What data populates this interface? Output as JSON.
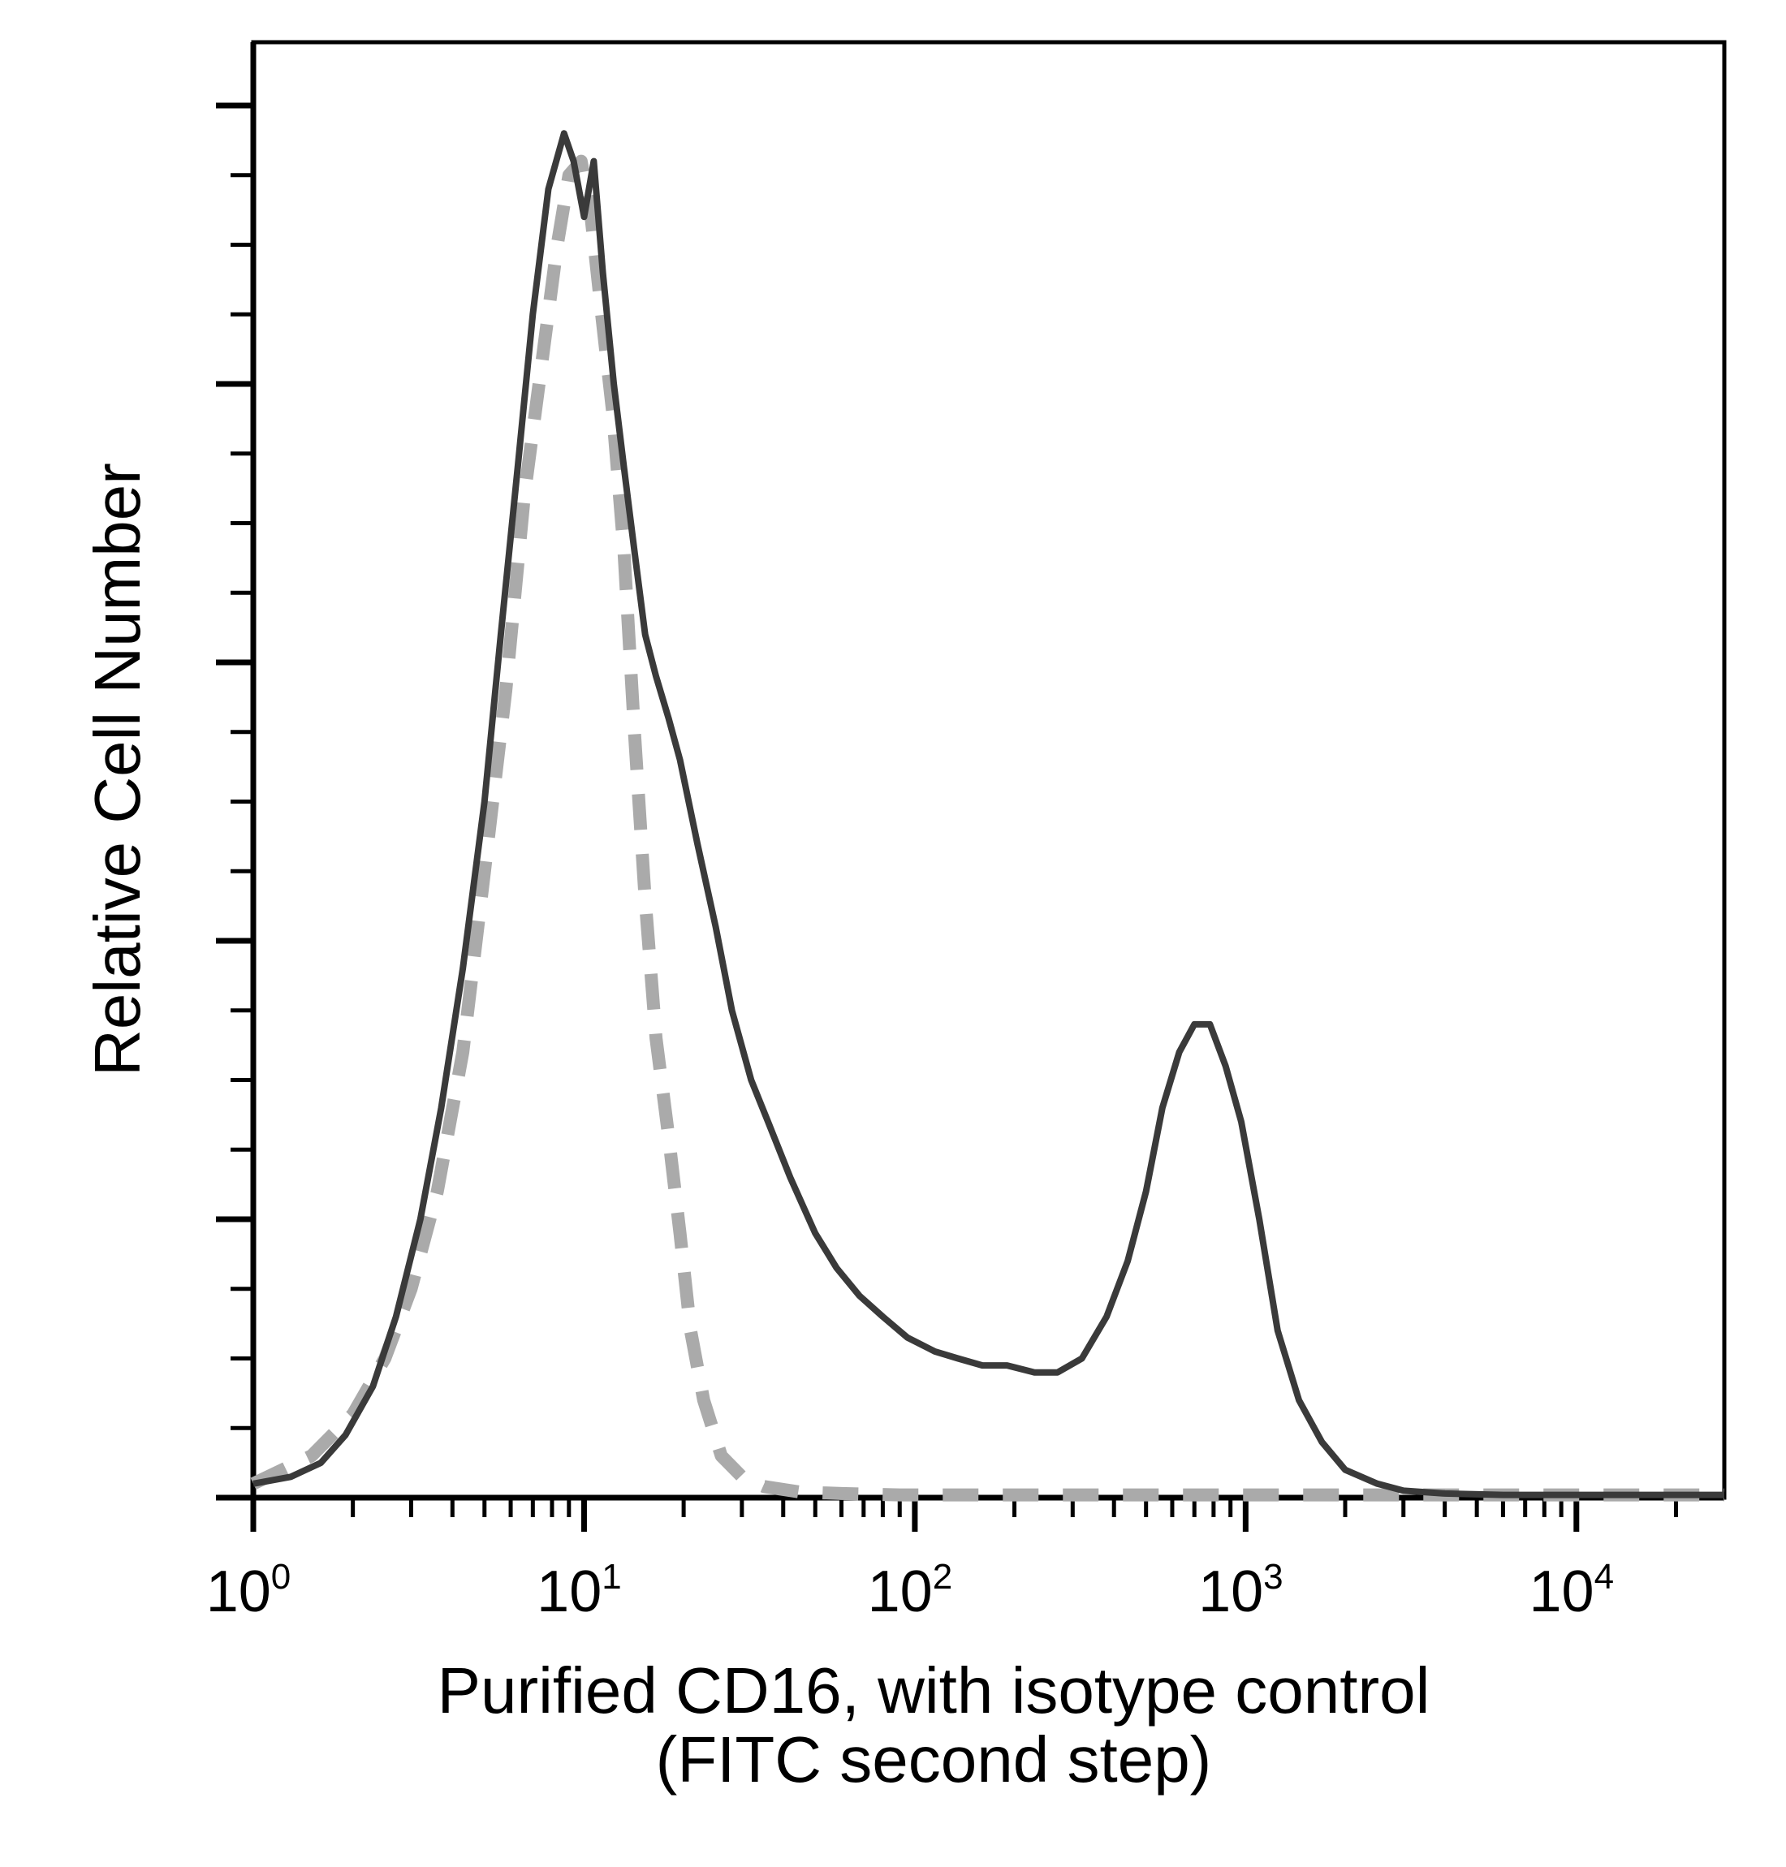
{
  "chart_data": {
    "type": "line",
    "xlabel_lines": [
      "Purified CD16, with isotype control",
      "(FITC second step)"
    ],
    "ylabel": "Relative Cell Number",
    "x_scale": "log",
    "xlim": [
      1,
      28000
    ],
    "ylim": [
      0,
      100
    ],
    "x_ticks": [
      {
        "base": "10",
        "exp": "0",
        "value": 1
      },
      {
        "base": "10",
        "exp": "1",
        "value": 10
      },
      {
        "base": "10",
        "exp": "2",
        "value": 100
      },
      {
        "base": "10",
        "exp": "3",
        "value": 1000
      },
      {
        "base": "10",
        "exp": "4",
        "value": 10000
      }
    ],
    "y_tick_count": 21,
    "y_major_every": 4,
    "grid": false,
    "series": [
      {
        "style": "solid",
        "color": "#3a3a3a",
        "x": [
          1,
          1.3,
          1.6,
          1.9,
          2.3,
          2.7,
          3.2,
          3.7,
          4.3,
          5.0,
          5.6,
          6.3,
          7.0,
          7.8,
          8.7,
          9.3,
          10.0,
          10.7,
          11.4,
          12.3,
          13.2,
          14.2,
          15.3,
          16.5,
          18.0,
          19.5,
          22.0,
          25.0,
          28.0,
          32.0,
          36.0,
          42.0,
          50.0,
          58.0,
          68.0,
          80.0,
          95.0,
          115.0,
          135.0,
          160.0,
          190.0,
          230.0,
          270.0,
          320.0,
          380.0,
          440.0,
          500.0,
          560.0,
          630.0,
          700.0,
          780.0,
          870.0,
          970.0,
          1100.0,
          1250.0,
          1450.0,
          1700.0,
          2000.0,
          2500.0,
          3000.0,
          4000.0,
          6000.0,
          10000.0,
          28000.0
        ],
        "y": [
          1.0,
          1.5,
          2.5,
          4.5,
          8.0,
          13.0,
          20.0,
          28.0,
          38.0,
          50.0,
          62.0,
          74.0,
          85.0,
          94.0,
          98.0,
          96.0,
          92.0,
          96.0,
          88.0,
          80.0,
          74.0,
          68.0,
          62.0,
          59.0,
          56.0,
          53.0,
          47.0,
          41.0,
          35.0,
          30.0,
          27.0,
          23.0,
          19.0,
          16.5,
          14.5,
          13.0,
          11.5,
          10.5,
          10.0,
          9.5,
          9.5,
          9.0,
          9.0,
          10.0,
          13.0,
          17.0,
          22.0,
          28.0,
          32.0,
          34.0,
          34.0,
          31.0,
          27.0,
          20.0,
          12.0,
          7.0,
          4.0,
          2.0,
          1.0,
          0.5,
          0.3,
          0.2,
          0.2,
          0.2
        ]
      },
      {
        "style": "dashed",
        "color": "#aaaaaa",
        "x": [
          1,
          1.5,
          2.0,
          2.5,
          3.0,
          3.6,
          4.3,
          5.0,
          5.8,
          6.6,
          7.5,
          8.3,
          9.0,
          9.8,
          10.5,
          11.3,
          12.2,
          13.2,
          14.2,
          15.3,
          16.5,
          18.0,
          19.5,
          21.0,
          23.0,
          26.0,
          30.0,
          35.0,
          45.0,
          60.0,
          90.0,
          150.0,
          300.0,
          1000.0,
          28000.0
        ],
        "y": [
          1.0,
          3.0,
          6.0,
          10.0,
          15.0,
          22.0,
          32.0,
          45.0,
          58.0,
          72.0,
          82.0,
          90.0,
          95.0,
          96.0,
          92.0,
          85.0,
          78.0,
          68.0,
          55.0,
          43.0,
          33.0,
          26.0,
          19.0,
          12.0,
          7.0,
          3.0,
          1.5,
          0.8,
          0.4,
          0.3,
          0.2,
          0.2,
          0.2,
          0.2,
          0.2
        ]
      }
    ]
  }
}
